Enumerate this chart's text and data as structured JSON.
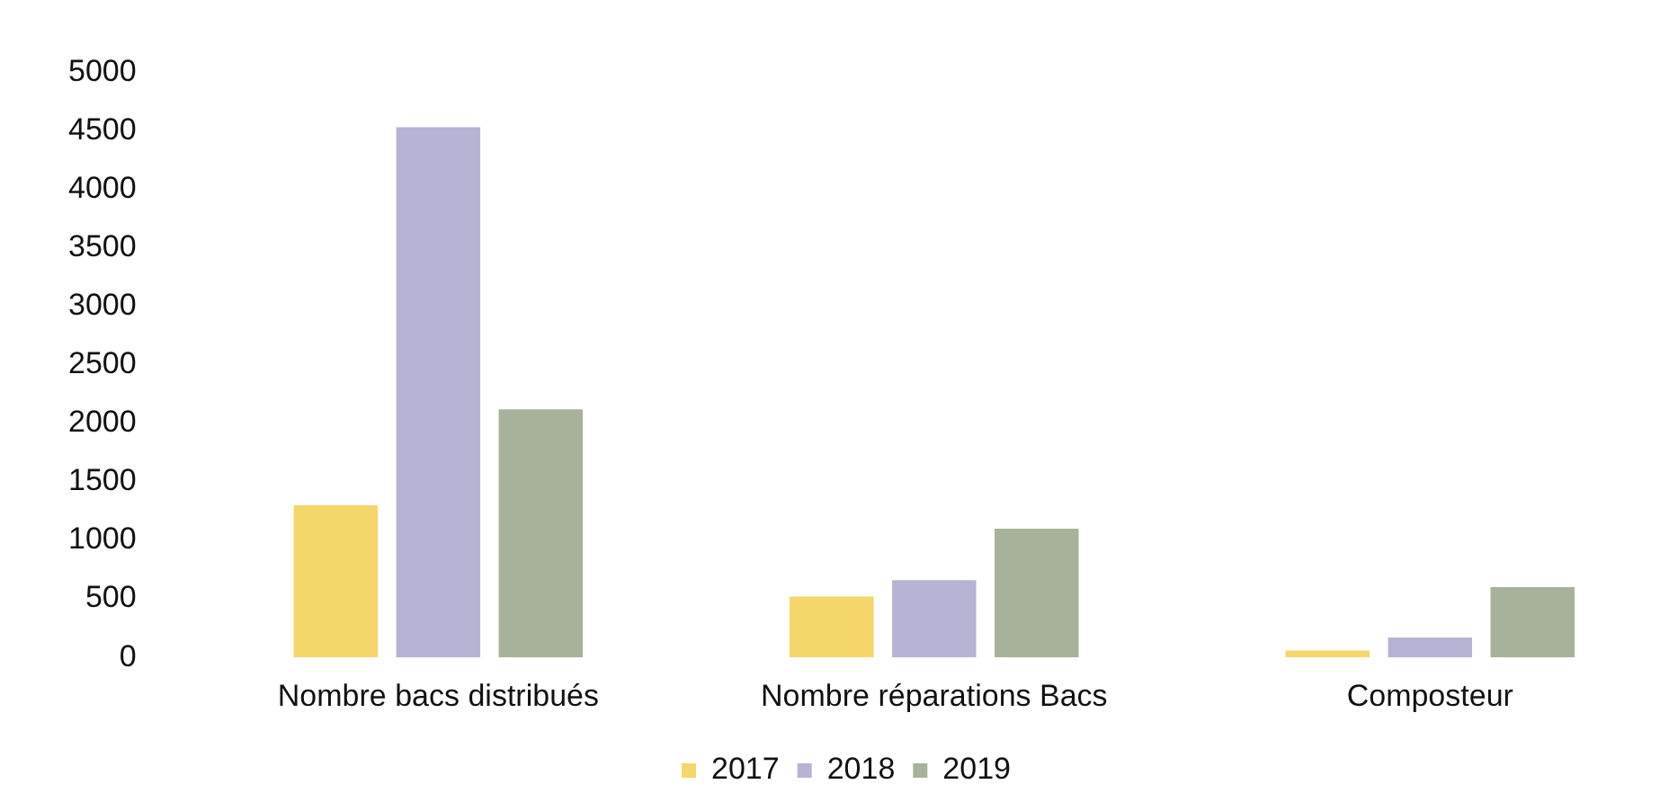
{
  "chart_data": {
    "type": "bar",
    "categories": [
      "Nombre bacs distribués",
      "Nombre réparations Bacs",
      "Composteur"
    ],
    "series": [
      {
        "name": "2017",
        "color": "#f5d66a",
        "values": [
          1300,
          520,
          60
        ]
      },
      {
        "name": "2018",
        "color": "#b6b3d4",
        "values": [
          4530,
          660,
          170
        ]
      },
      {
        "name": "2019",
        "color": "#a8b199",
        "values": [
          2120,
          1100,
          600
        ]
      }
    ],
    "ylim": [
      0,
      5000
    ],
    "yticks": [
      0,
      500,
      1000,
      1500,
      2000,
      2500,
      3000,
      3500,
      4000,
      4500,
      5000
    ],
    "grid": false,
    "legend": "bottom"
  }
}
